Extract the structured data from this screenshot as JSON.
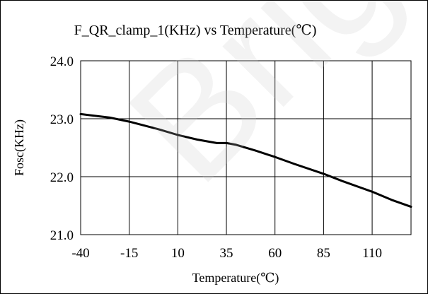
{
  "watermark": "Bright Co",
  "chart_data": {
    "type": "line",
    "title": "F_QR_clamp_1(KHz) vs Temperature(℃)",
    "xlabel": "Temperature(℃)",
    "ylabel": "Fosc(KHz)",
    "xlim": [
      -40,
      130
    ],
    "ylim": [
      21.0,
      24.0
    ],
    "x_ticks": [
      "-40",
      "-15",
      "10",
      "35",
      "60",
      "85",
      "110"
    ],
    "y_ticks": [
      "21.0",
      "22.0",
      "23.0",
      "24.0"
    ],
    "grid": true,
    "legend": "none",
    "series": [
      {
        "color": "#000000",
        "x": [
          -40,
          -25,
          -15,
          0,
          10,
          20,
          30,
          35,
          40,
          50,
          60,
          70,
          85,
          95,
          110,
          120,
          130
        ],
        "y": [
          23.08,
          23.02,
          22.95,
          22.82,
          22.72,
          22.64,
          22.58,
          22.58,
          22.55,
          22.45,
          22.34,
          22.22,
          22.05,
          21.92,
          21.74,
          21.6,
          21.48
        ]
      }
    ]
  }
}
